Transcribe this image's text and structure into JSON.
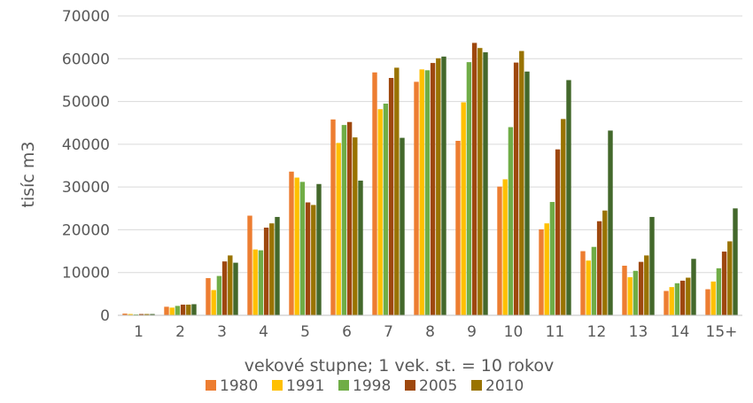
{
  "chart_data": {
    "type": "bar",
    "title": "",
    "xlabel": "vekové stupne; 1 vek. st. = 10 rokov",
    "ylabel": "tisíc m3",
    "ylim": [
      0,
      70000
    ],
    "yticks": [
      0,
      10000,
      20000,
      30000,
      40000,
      50000,
      60000,
      70000
    ],
    "grid": true,
    "legend_position": "bottom",
    "categories": [
      "1",
      "2",
      "3",
      "4",
      "5",
      "6",
      "7",
      "8",
      "9",
      "10",
      "11",
      "12",
      "13",
      "14",
      "15+"
    ],
    "series": [
      {
        "name": "1980",
        "color": "#ED7D31",
        "values": [
          400,
          2000,
          8700,
          23300,
          33600,
          45800,
          56800,
          54600,
          40800,
          30100,
          20100,
          15000,
          11600,
          5700,
          6100
        ]
      },
      {
        "name": "1991",
        "color": "#FFC000",
        "values": [
          300,
          1800,
          5900,
          15400,
          32200,
          40300,
          48200,
          57500,
          49800,
          31800,
          21500,
          12800,
          8900,
          6600,
          7900
        ]
      },
      {
        "name": "1998",
        "color": "#70AD47",
        "values": [
          200,
          2200,
          9200,
          15200,
          31200,
          44500,
          49500,
          57300,
          59200,
          44000,
          26500,
          16000,
          10400,
          7500,
          11000
        ]
      },
      {
        "name": "2005",
        "color": "#9E480E",
        "values": [
          300,
          2500,
          12600,
          20500,
          26400,
          45200,
          55500,
          59000,
          63700,
          59100,
          38800,
          22000,
          12500,
          8100,
          14900
        ]
      },
      {
        "name": "2010",
        "color": "#997300",
        "values": [
          300,
          2500,
          14000,
          21500,
          25800,
          41600,
          57900,
          60100,
          62500,
          61800,
          45900,
          24500,
          14000,
          8800,
          17300
        ]
      },
      {
        "name": "",
        "color": "#43682B",
        "values": [
          300,
          2600,
          12300,
          23000,
          30700,
          31500,
          41500,
          60500,
          61500,
          57000,
          55000,
          43200,
          23000,
          13200,
          25000
        ]
      }
    ]
  }
}
